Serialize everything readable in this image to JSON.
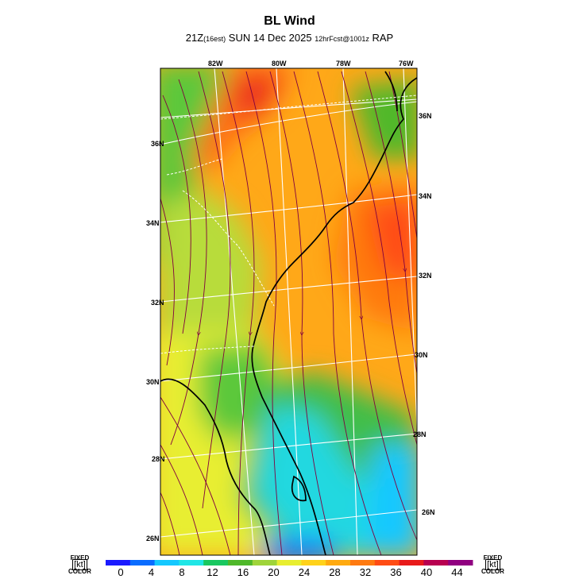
{
  "title": "BL Wind",
  "subtitle": {
    "valid_main": "21Z",
    "valid_local": "(16est)",
    "date": "SUN 14 Dec 2025",
    "forecast": "12hrFcst@1001z",
    "model": "RAP"
  },
  "lon_labels": [
    "82W",
    "80W",
    "78W",
    "76W"
  ],
  "lat_labels_left": [
    "36N",
    "34N",
    "32N",
    "30N",
    "28N",
    "26N"
  ],
  "lat_labels_right": [
    "36N",
    "34N",
    "32N",
    "30N",
    "28N",
    "26N"
  ],
  "colorbar": {
    "left_text": [
      "FIXED",
      "[kt]",
      "COLOR"
    ],
    "right_text": [
      "FIXED",
      "[kt]",
      "COLOR"
    ],
    "ticks": [
      "0",
      "4",
      "8",
      "12",
      "16",
      "20",
      "24",
      "28",
      "32",
      "36",
      "40",
      "44"
    ],
    "colors": [
      "#1a1aff",
      "#0a6cff",
      "#14c8ff",
      "#20e6e6",
      "#19c860",
      "#4fb82a",
      "#9fd43a",
      "#e8ee30",
      "#ffd21a",
      "#ffaa10",
      "#ff7a10",
      "#ff4c14",
      "#e81a1a",
      "#b80050",
      "#900080"
    ]
  },
  "colors": {
    "wind_low": "#22e0f0",
    "wind_mid": "#e8ee30",
    "wind_high": "#ff4c14",
    "streamline": "#800040",
    "coast": "#000000",
    "grid": "#ffffff"
  }
}
